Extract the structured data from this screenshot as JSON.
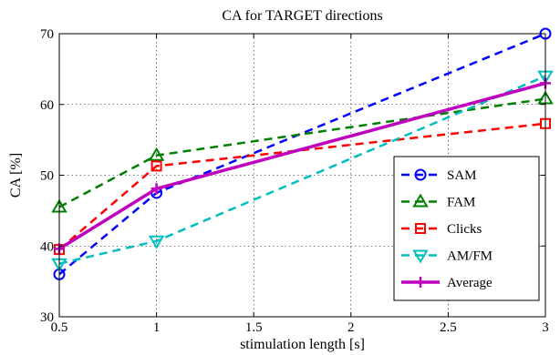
{
  "chart_data": {
    "type": "line",
    "title": "CA for TARGET directions",
    "xlabel": "stimulation length [s]",
    "ylabel": "CA [%]",
    "xlim": [
      0.5,
      3
    ],
    "ylim": [
      30,
      70
    ],
    "xticks": [
      "0.5",
      "1",
      "1.5",
      "2",
      "2.5",
      "3"
    ],
    "yticks": [
      "30",
      "40",
      "50",
      "60",
      "70"
    ],
    "grid": true,
    "legend_position": "bottom-right",
    "x": [
      0.5,
      1,
      3
    ],
    "series": [
      {
        "name": "SAM",
        "values": [
          36.0,
          47.5,
          70.0
        ],
        "color": "#0000ff",
        "dash": "dashed",
        "marker": "circle"
      },
      {
        "name": "FAM",
        "values": [
          45.5,
          52.8,
          60.8
        ],
        "color": "#008000",
        "dash": "dashed",
        "marker": "triangle-up"
      },
      {
        "name": "Clicks",
        "values": [
          39.5,
          51.3,
          57.3
        ],
        "color": "#ff0000",
        "dash": "dashed",
        "marker": "square"
      },
      {
        "name": "AM/FM",
        "values": [
          37.5,
          40.7,
          64.0
        ],
        "color": "#00bfbf",
        "dash": "dashed",
        "marker": "triangle-down"
      },
      {
        "name": "Average",
        "values": [
          39.6,
          48.1,
          63.0
        ],
        "color": "#bf00bf",
        "dash": "solid",
        "marker": "plus"
      }
    ]
  }
}
